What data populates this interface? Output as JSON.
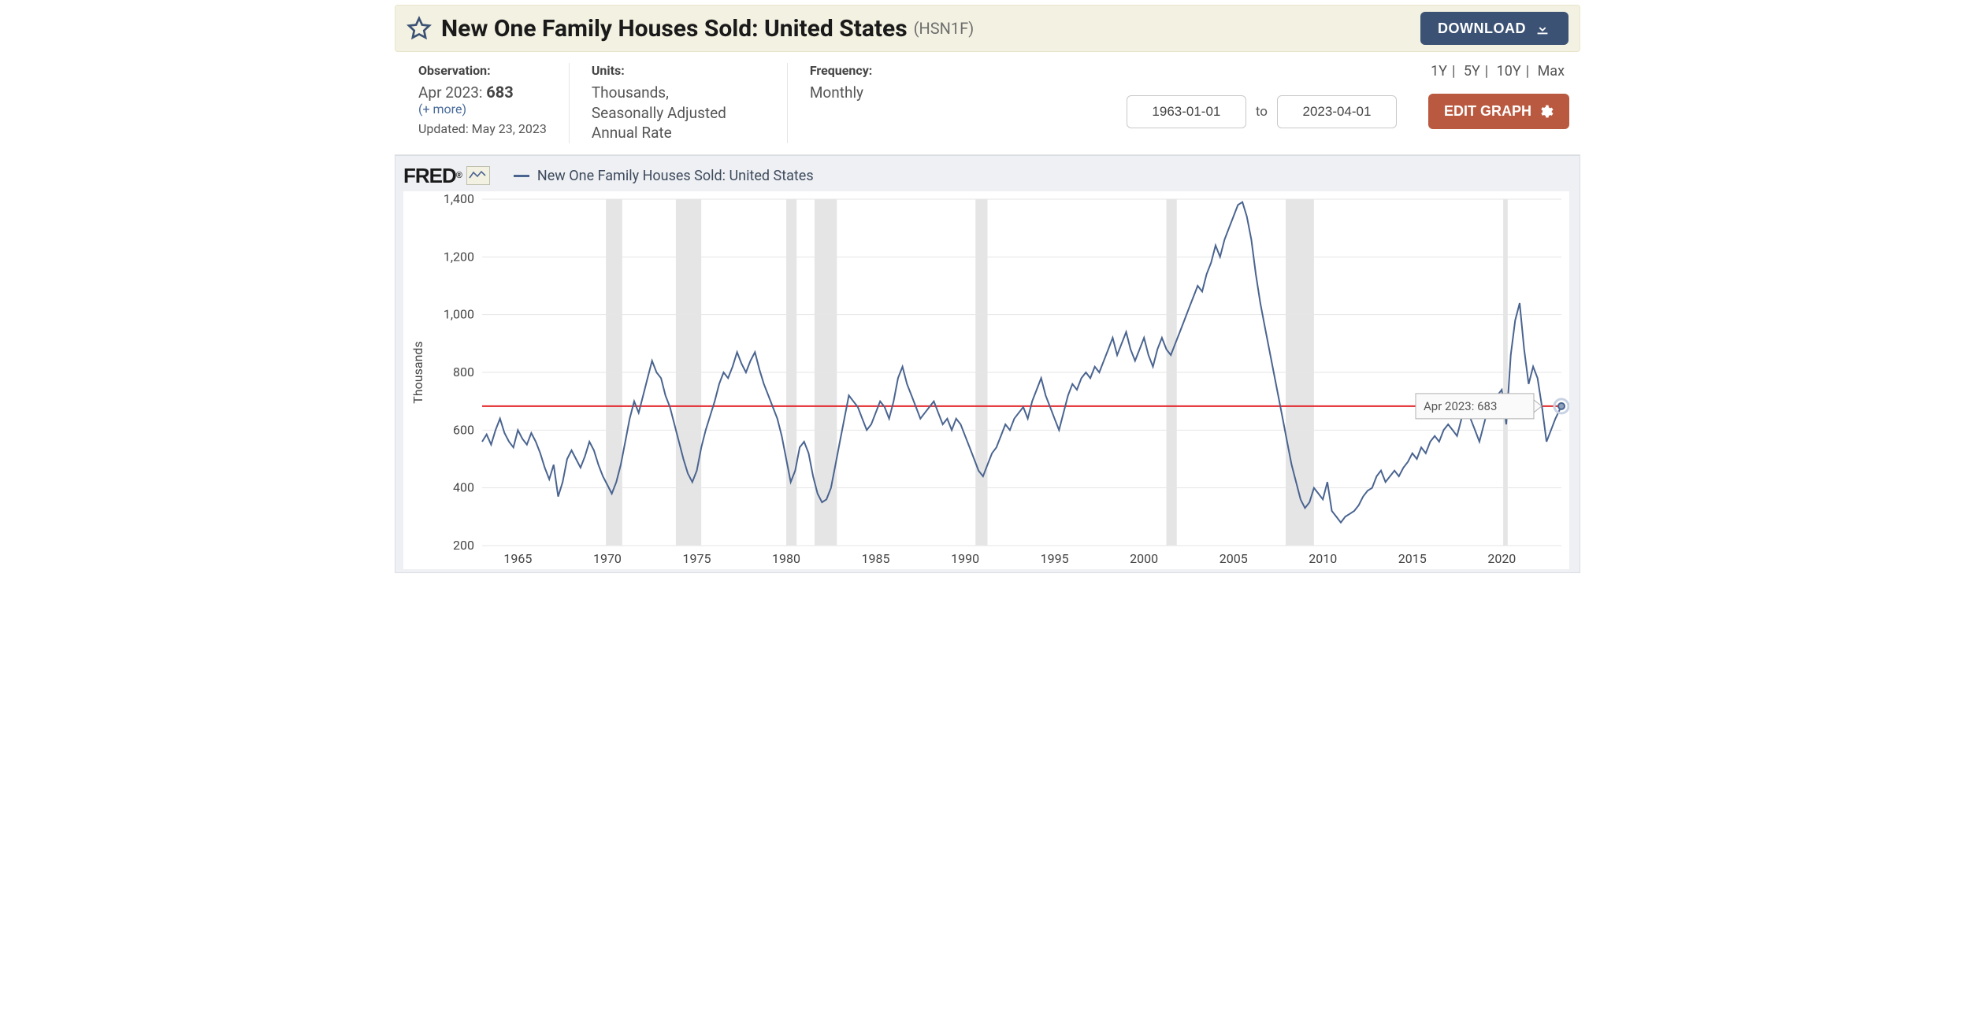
{
  "header": {
    "title": "New One Family Houses Sold: United States",
    "series_id": "(HSN1F)",
    "download_label": "DOWNLOAD",
    "star_color": "#3b5275"
  },
  "info": {
    "observation": {
      "label": "Observation:",
      "period": "Apr 2023:",
      "value": "683",
      "more": "(+ more)",
      "updated": "Updated: May 23, 2023"
    },
    "units": {
      "label": "Units:",
      "text": "Thousands,\nSeasonally Adjusted Annual Rate"
    },
    "frequency": {
      "label": "Frequency:",
      "text": "Monthly"
    }
  },
  "controls": {
    "ranges": [
      "1Y",
      "5Y",
      "10Y",
      "Max"
    ],
    "from": "1963-01-01",
    "to_label": "to",
    "to": "2023-04-01",
    "edit_label": "EDIT GRAPH"
  },
  "chart": {
    "legend_brand": "FRED",
    "legend_label": "New One Family Houses Sold: United States",
    "type": "line",
    "x_min_year": 1963.0,
    "x_max_year": 2023.333,
    "y_min": 200,
    "y_max": 1400,
    "y_step": 200,
    "y_ticks": [
      200,
      400,
      600,
      800,
      1000,
      1200,
      1400
    ],
    "x_ticks": [
      1965,
      1970,
      1975,
      1980,
      1985,
      1990,
      1995,
      2000,
      2005,
      2010,
      2015,
      2020
    ],
    "y_label": "Thousands",
    "grid_color": "#e6e6e6",
    "background_color": "#ffffff",
    "plot_background": "#eef0f4",
    "series_color": "#4a6490",
    "series_width": 2,
    "reference_line": {
      "value": 683,
      "color": "#e2292e",
      "width": 2
    },
    "tooltip": {
      "label": "Apr 2023:",
      "value": "683"
    },
    "end_point_marker": {
      "radius_inner": 4,
      "radius_outer": 9
    },
    "recessions_years": [
      [
        1969.92,
        1970.83
      ],
      [
        1973.83,
        1975.25
      ],
      [
        1980.0,
        1980.58
      ],
      [
        1981.58,
        1982.83
      ],
      [
        1990.58,
        1991.25
      ],
      [
        2001.25,
        2001.83
      ],
      [
        2007.92,
        2009.5
      ],
      [
        2020.08,
        2020.33
      ]
    ],
    "series_yearvalue": [
      [
        1963.0,
        560
      ],
      [
        1963.25,
        585
      ],
      [
        1963.5,
        550
      ],
      [
        1963.75,
        600
      ],
      [
        1964.0,
        640
      ],
      [
        1964.25,
        590
      ],
      [
        1964.5,
        560
      ],
      [
        1964.75,
        540
      ],
      [
        1965.0,
        600
      ],
      [
        1965.25,
        570
      ],
      [
        1965.5,
        550
      ],
      [
        1965.75,
        590
      ],
      [
        1966.0,
        560
      ],
      [
        1966.25,
        520
      ],
      [
        1966.5,
        470
      ],
      [
        1966.75,
        430
      ],
      [
        1967.0,
        480
      ],
      [
        1967.25,
        370
      ],
      [
        1967.5,
        420
      ],
      [
        1967.75,
        500
      ],
      [
        1968.0,
        530
      ],
      [
        1968.25,
        500
      ],
      [
        1968.5,
        470
      ],
      [
        1968.75,
        510
      ],
      [
        1969.0,
        560
      ],
      [
        1969.25,
        530
      ],
      [
        1969.5,
        480
      ],
      [
        1969.75,
        440
      ],
      [
        1970.0,
        410
      ],
      [
        1970.25,
        380
      ],
      [
        1970.5,
        420
      ],
      [
        1970.75,
        480
      ],
      [
        1971.0,
        560
      ],
      [
        1971.25,
        640
      ],
      [
        1971.5,
        700
      ],
      [
        1971.75,
        660
      ],
      [
        1972.0,
        720
      ],
      [
        1972.25,
        780
      ],
      [
        1972.5,
        840
      ],
      [
        1972.75,
        800
      ],
      [
        1973.0,
        780
      ],
      [
        1973.25,
        720
      ],
      [
        1973.5,
        680
      ],
      [
        1973.75,
        620
      ],
      [
        1974.0,
        560
      ],
      [
        1974.25,
        500
      ],
      [
        1974.5,
        450
      ],
      [
        1974.75,
        420
      ],
      [
        1975.0,
        460
      ],
      [
        1975.25,
        540
      ],
      [
        1975.5,
        600
      ],
      [
        1975.75,
        650
      ],
      [
        1976.0,
        700
      ],
      [
        1976.25,
        760
      ],
      [
        1976.5,
        800
      ],
      [
        1976.75,
        780
      ],
      [
        1977.0,
        820
      ],
      [
        1977.25,
        870
      ],
      [
        1977.5,
        830
      ],
      [
        1977.75,
        800
      ],
      [
        1978.0,
        840
      ],
      [
        1978.25,
        870
      ],
      [
        1978.5,
        810
      ],
      [
        1978.75,
        760
      ],
      [
        1979.0,
        720
      ],
      [
        1979.25,
        680
      ],
      [
        1979.5,
        640
      ],
      [
        1979.75,
        580
      ],
      [
        1980.0,
        500
      ],
      [
        1980.25,
        420
      ],
      [
        1980.5,
        460
      ],
      [
        1980.75,
        540
      ],
      [
        1981.0,
        560
      ],
      [
        1981.25,
        520
      ],
      [
        1981.5,
        440
      ],
      [
        1981.75,
        380
      ],
      [
        1982.0,
        350
      ],
      [
        1982.25,
        360
      ],
      [
        1982.5,
        400
      ],
      [
        1982.75,
        480
      ],
      [
        1983.0,
        560
      ],
      [
        1983.25,
        640
      ],
      [
        1983.5,
        720
      ],
      [
        1983.75,
        700
      ],
      [
        1984.0,
        680
      ],
      [
        1984.25,
        640
      ],
      [
        1984.5,
        600
      ],
      [
        1984.75,
        620
      ],
      [
        1985.0,
        660
      ],
      [
        1985.25,
        700
      ],
      [
        1985.5,
        680
      ],
      [
        1985.75,
        640
      ],
      [
        1986.0,
        700
      ],
      [
        1986.25,
        780
      ],
      [
        1986.5,
        820
      ],
      [
        1986.75,
        760
      ],
      [
        1987.0,
        720
      ],
      [
        1987.25,
        680
      ],
      [
        1987.5,
        640
      ],
      [
        1987.75,
        660
      ],
      [
        1988.0,
        680
      ],
      [
        1988.25,
        700
      ],
      [
        1988.5,
        660
      ],
      [
        1988.75,
        620
      ],
      [
        1989.0,
        640
      ],
      [
        1989.25,
        600
      ],
      [
        1989.5,
        640
      ],
      [
        1989.75,
        620
      ],
      [
        1990.0,
        580
      ],
      [
        1990.25,
        540
      ],
      [
        1990.5,
        500
      ],
      [
        1990.75,
        460
      ],
      [
        1991.0,
        440
      ],
      [
        1991.25,
        480
      ],
      [
        1991.5,
        520
      ],
      [
        1991.75,
        540
      ],
      [
        1992.0,
        580
      ],
      [
        1992.25,
        620
      ],
      [
        1992.5,
        600
      ],
      [
        1992.75,
        640
      ],
      [
        1993.0,
        660
      ],
      [
        1993.25,
        680
      ],
      [
        1993.5,
        640
      ],
      [
        1993.75,
        700
      ],
      [
        1994.0,
        740
      ],
      [
        1994.25,
        780
      ],
      [
        1994.5,
        720
      ],
      [
        1994.75,
        680
      ],
      [
        1995.0,
        640
      ],
      [
        1995.25,
        600
      ],
      [
        1995.5,
        660
      ],
      [
        1995.75,
        720
      ],
      [
        1996.0,
        760
      ],
      [
        1996.25,
        740
      ],
      [
        1996.5,
        780
      ],
      [
        1996.75,
        800
      ],
      [
        1997.0,
        780
      ],
      [
        1997.25,
        820
      ],
      [
        1997.5,
        800
      ],
      [
        1997.75,
        840
      ],
      [
        1998.0,
        880
      ],
      [
        1998.25,
        920
      ],
      [
        1998.5,
        860
      ],
      [
        1998.75,
        900
      ],
      [
        1999.0,
        940
      ],
      [
        1999.25,
        880
      ],
      [
        1999.5,
        840
      ],
      [
        1999.75,
        880
      ],
      [
        2000.0,
        920
      ],
      [
        2000.25,
        860
      ],
      [
        2000.5,
        820
      ],
      [
        2000.75,
        880
      ],
      [
        2001.0,
        920
      ],
      [
        2001.25,
        880
      ],
      [
        2001.5,
        860
      ],
      [
        2001.75,
        900
      ],
      [
        2002.0,
        940
      ],
      [
        2002.25,
        980
      ],
      [
        2002.5,
        1020
      ],
      [
        2002.75,
        1060
      ],
      [
        2003.0,
        1100
      ],
      [
        2003.25,
        1080
      ],
      [
        2003.5,
        1140
      ],
      [
        2003.75,
        1180
      ],
      [
        2004.0,
        1240
      ],
      [
        2004.25,
        1200
      ],
      [
        2004.5,
        1260
      ],
      [
        2004.75,
        1300
      ],
      [
        2005.0,
        1340
      ],
      [
        2005.25,
        1380
      ],
      [
        2005.5,
        1390
      ],
      [
        2005.75,
        1340
      ],
      [
        2006.0,
        1260
      ],
      [
        2006.25,
        1140
      ],
      [
        2006.5,
        1040
      ],
      [
        2006.75,
        960
      ],
      [
        2007.0,
        880
      ],
      [
        2007.25,
        800
      ],
      [
        2007.5,
        720
      ],
      [
        2007.75,
        640
      ],
      [
        2008.0,
        560
      ],
      [
        2008.25,
        480
      ],
      [
        2008.5,
        420
      ],
      [
        2008.75,
        360
      ],
      [
        2009.0,
        330
      ],
      [
        2009.25,
        350
      ],
      [
        2009.5,
        400
      ],
      [
        2009.75,
        380
      ],
      [
        2010.0,
        360
      ],
      [
        2010.25,
        420
      ],
      [
        2010.5,
        320
      ],
      [
        2010.75,
        300
      ],
      [
        2011.0,
        280
      ],
      [
        2011.25,
        300
      ],
      [
        2011.5,
        310
      ],
      [
        2011.75,
        320
      ],
      [
        2012.0,
        340
      ],
      [
        2012.25,
        370
      ],
      [
        2012.5,
        390
      ],
      [
        2012.75,
        400
      ],
      [
        2013.0,
        440
      ],
      [
        2013.25,
        460
      ],
      [
        2013.5,
        420
      ],
      [
        2013.75,
        440
      ],
      [
        2014.0,
        460
      ],
      [
        2014.25,
        440
      ],
      [
        2014.5,
        470
      ],
      [
        2014.75,
        490
      ],
      [
        2015.0,
        520
      ],
      [
        2015.25,
        500
      ],
      [
        2015.5,
        540
      ],
      [
        2015.75,
        520
      ],
      [
        2016.0,
        560
      ],
      [
        2016.25,
        580
      ],
      [
        2016.5,
        560
      ],
      [
        2016.75,
        600
      ],
      [
        2017.0,
        620
      ],
      [
        2017.25,
        600
      ],
      [
        2017.5,
        580
      ],
      [
        2017.75,
        640
      ],
      [
        2018.0,
        680
      ],
      [
        2018.25,
        640
      ],
      [
        2018.5,
        600
      ],
      [
        2018.75,
        560
      ],
      [
        2019.0,
        620
      ],
      [
        2019.25,
        680
      ],
      [
        2019.5,
        700
      ],
      [
        2019.75,
        720
      ],
      [
        2020.0,
        740
      ],
      [
        2020.25,
        620
      ],
      [
        2020.5,
        860
      ],
      [
        2020.75,
        980
      ],
      [
        2021.0,
        1040
      ],
      [
        2021.25,
        880
      ],
      [
        2021.5,
        760
      ],
      [
        2021.75,
        820
      ],
      [
        2022.0,
        780
      ],
      [
        2022.25,
        680
      ],
      [
        2022.5,
        560
      ],
      [
        2022.75,
        600
      ],
      [
        2023.0,
        640
      ],
      [
        2023.333,
        683
      ]
    ]
  }
}
